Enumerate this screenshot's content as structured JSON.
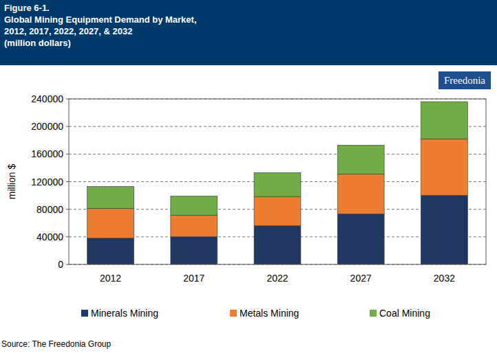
{
  "chart_data": {
    "type": "bar",
    "stacked": true,
    "figure_label": "Figure 6-1.",
    "title": "Global Mining Equipment Demand by Market,",
    "subtitle": "2012, 2017, 2022, 2027, & 2032",
    "units": "(million dollars)",
    "logo": "Freedonia",
    "source": "Source: The Freedonia Group",
    "y_label": "million $",
    "categories": [
      "2012",
      "2017",
      "2022",
      "2027",
      "2032"
    ],
    "series": [
      {
        "name": "Minerals Mining",
        "color": "#203864",
        "values": [
          38000,
          40000,
          56000,
          73000,
          100000
        ]
      },
      {
        "name": "Metals Mining",
        "color": "#ed7d31",
        "values": [
          43000,
          31000,
          42000,
          58000,
          82000
        ]
      },
      {
        "name": "Coal Mining",
        "color": "#70ad47",
        "values": [
          32000,
          28000,
          35000,
          42000,
          54000
        ]
      }
    ],
    "ylim": [
      0,
      240000
    ],
    "yticks": [
      0,
      40000,
      80000,
      120000,
      160000,
      200000,
      240000
    ],
    "grid": true,
    "legend": "bottom"
  }
}
